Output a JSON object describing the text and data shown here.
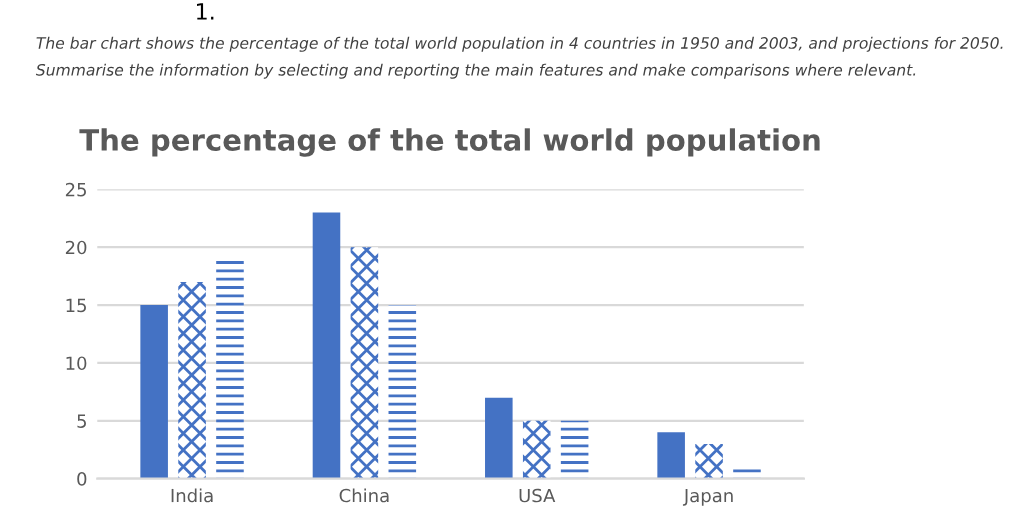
{
  "chart_data": {
    "type": "bar",
    "title": "The percentage of the total world population",
    "categories": [
      "India",
      "China",
      "USA",
      "Japan"
    ],
    "series": [
      {
        "color": "#4472c4",
        "values": [
          15,
          23,
          7,
          4
        ]
      },
      {
        "color": "#4472c4",
        "values": [
          17,
          20,
          5,
          3
        ]
      },
      {
        "color": "#4472c4",
        "values": [
          19,
          15,
          5,
          1
        ]
      }
    ],
    "ylim": [
      0,
      25
    ],
    "yticks": [
      0,
      5,
      10,
      15,
      20,
      25
    ],
    "grid": "y",
    "legend": false,
    "annotations": [
      "1.",
      "The bar chart shows the percentage of the total world population in 4 countries in 1950 and 2003, and projections for 2050. Summarise the information by selecting and reporting the main features and make comparisons where relevant."
    ]
  }
}
